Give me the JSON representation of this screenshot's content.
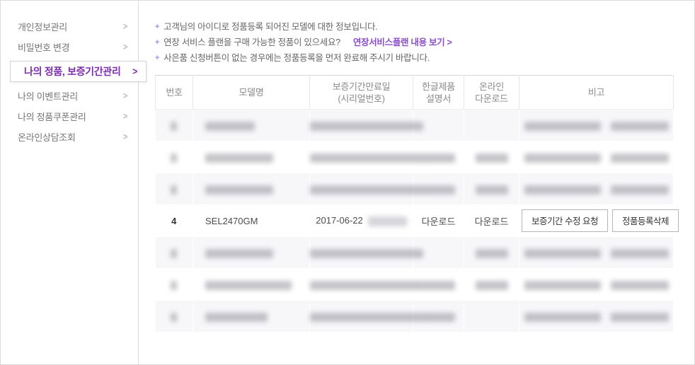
{
  "bullet_glyph": "+",
  "colors": {
    "accent_purple": "#7b2bad",
    "link_purple": "#8a4fc8"
  },
  "sidebar": {
    "chevron_glyph": ">",
    "items": [
      {
        "label": "개인정보관리",
        "active": false
      },
      {
        "label": "비밀번호 변경",
        "active": false
      },
      {
        "label": "나의 정품, 보증기간관리",
        "active": true
      },
      {
        "label": "나의 이벤트관리",
        "active": false
      },
      {
        "label": "나의 정품쿠폰관리",
        "active": false
      },
      {
        "label": "온라인상담조회",
        "active": false
      }
    ]
  },
  "notices": [
    {
      "text": "고객님의 아이디로 정품등록 되어진 모델에 대한 정보입니다.",
      "link": ""
    },
    {
      "text": "연장 서비스 플랜을 구매 가능한 정품이 있으세요?",
      "link": "연장서비스플랜 내용 보기 >"
    },
    {
      "text": "사은품 신청버튼이 없는 경우에는 정품등록을 먼저 완료해 주시기 바랍니다.",
      "link": ""
    }
  ],
  "table": {
    "headers": [
      {
        "lines": [
          "번호"
        ]
      },
      {
        "lines": [
          "모델명"
        ]
      },
      {
        "lines": [
          "보증기간만료일",
          "(시리얼번호)"
        ]
      },
      {
        "lines": [
          "한글제품",
          "설명서"
        ]
      },
      {
        "lines": [
          "온라인",
          "다운로드"
        ]
      },
      {
        "lines": [
          "비고"
        ]
      }
    ],
    "rows": [
      {
        "masked": true,
        "manual": false,
        "download": false
      },
      {
        "masked": true,
        "manual": true,
        "download": true
      },
      {
        "masked": true,
        "manual": true,
        "download": true
      },
      {
        "masked": false,
        "no": "4",
        "model": "SEL2470GM",
        "warranty_expiry": "2017-06-22",
        "serial_masked": true,
        "manual": "다운로드",
        "online_download": "다운로드",
        "actions": [
          "보증기간 수정 요청",
          "정품등록삭제"
        ]
      },
      {
        "masked": true,
        "manual": false,
        "download": true
      },
      {
        "masked": true,
        "manual": true,
        "download": true
      },
      {
        "masked": true,
        "manual": true,
        "download": false
      }
    ]
  }
}
